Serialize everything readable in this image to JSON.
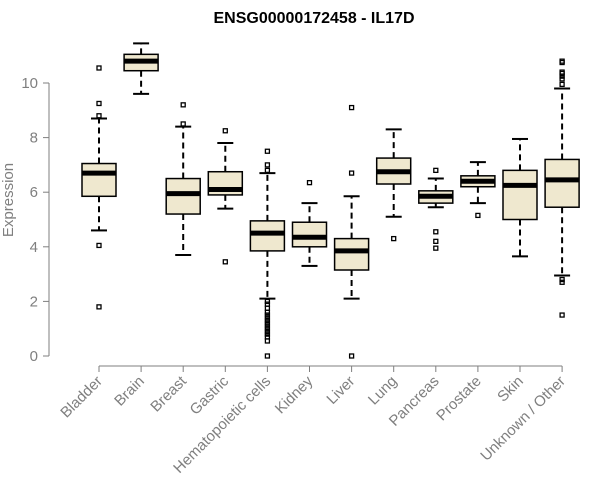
{
  "chart_data": {
    "type": "boxplot",
    "title": "ENSG00000172458 - IL17D",
    "xlabel": "",
    "ylabel": "Expression",
    "ylim": [
      0,
      11.5
    ],
    "yticks": [
      0,
      2,
      4,
      6,
      8,
      10
    ],
    "categories": [
      "Bladder",
      "Brain",
      "Breast",
      "Gastric",
      "Hematopoietic cells",
      "Kidney",
      "Liver",
      "Lung",
      "Pancreas",
      "Prostate",
      "Skin",
      "Unknown / Other"
    ],
    "boxes": [
      {
        "whisker_low": 4.6,
        "q1": 5.85,
        "median": 6.7,
        "q3": 7.05,
        "whisker_high": 8.7,
        "outliers": [
          10.55,
          9.25,
          8.8,
          4.05,
          1.8
        ]
      },
      {
        "whisker_low": 9.6,
        "q1": 10.45,
        "median": 10.8,
        "q3": 11.05,
        "whisker_high": 11.45,
        "outliers": []
      },
      {
        "whisker_low": 3.7,
        "q1": 5.2,
        "median": 5.95,
        "q3": 6.5,
        "whisker_high": 8.4,
        "outliers": [
          9.2,
          8.5
        ]
      },
      {
        "whisker_low": 5.4,
        "q1": 5.9,
        "median": 6.1,
        "q3": 6.75,
        "whisker_high": 7.8,
        "outliers": [
          8.25,
          3.45
        ]
      },
      {
        "whisker_low": 2.1,
        "q1": 3.85,
        "median": 4.5,
        "q3": 4.95,
        "whisker_high": 6.7,
        "outliers": [
          7.5,
          7.0,
          6.8,
          2.0,
          1.9,
          1.75,
          1.6,
          1.5,
          1.4,
          1.3,
          1.2,
          1.1,
          1.0,
          0.9,
          0.8,
          0.7,
          0.55,
          0.0
        ]
      },
      {
        "whisker_low": 3.3,
        "q1": 4.0,
        "median": 4.35,
        "q3": 4.9,
        "whisker_high": 5.6,
        "outliers": [
          6.35
        ]
      },
      {
        "whisker_low": 2.1,
        "q1": 3.15,
        "median": 3.85,
        "q3": 4.3,
        "whisker_high": 5.85,
        "outliers": [
          9.1,
          6.7,
          0.0
        ]
      },
      {
        "whisker_low": 5.1,
        "q1": 6.3,
        "median": 6.75,
        "q3": 7.25,
        "whisker_high": 8.3,
        "outliers": [
          4.3
        ]
      },
      {
        "whisker_low": 5.45,
        "q1": 5.6,
        "median": 5.85,
        "q3": 6.05,
        "whisker_high": 6.5,
        "outliers": [
          6.8,
          4.55,
          4.2,
          3.95
        ]
      },
      {
        "whisker_low": 5.6,
        "q1": 6.2,
        "median": 6.4,
        "q3": 6.6,
        "whisker_high": 7.1,
        "outliers": [
          5.15
        ]
      },
      {
        "whisker_low": 3.65,
        "q1": 5.0,
        "median": 6.25,
        "q3": 6.8,
        "whisker_high": 7.95,
        "outliers": []
      },
      {
        "whisker_low": 2.95,
        "q1": 5.45,
        "median": 6.45,
        "q3": 7.2,
        "whisker_high": 9.8,
        "outliers": [
          10.8,
          10.75,
          10.4,
          10.35,
          10.25,
          10.15,
          9.95,
          2.8,
          2.7,
          1.5
        ]
      }
    ],
    "colors": {
      "box_fill": "#efe8cf",
      "box_stroke": "#000000",
      "median": "#000000",
      "axis": "#7f7f7f",
      "axis_text": "#7f7f7f"
    }
  }
}
